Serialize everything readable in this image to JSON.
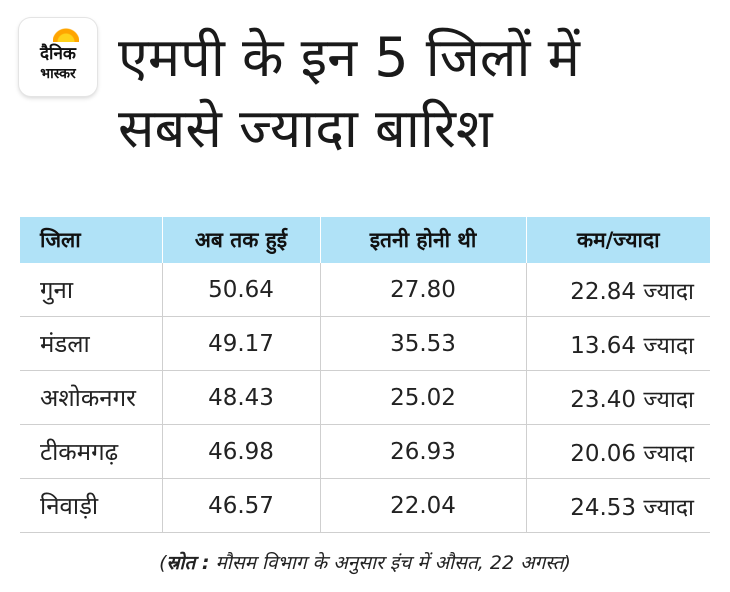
{
  "logo": {
    "line1": "दैनिक",
    "line2": "भास्कर",
    "accent_color": "#ffa500"
  },
  "title": {
    "line1": "एमपी के इन 5 जिलों में",
    "line2": "सबसे ज्यादा बारिश"
  },
  "table": {
    "header_bg": "#b0e2f7",
    "headers": [
      "जिला",
      "अब तक हुई",
      "इतनी होनी थी",
      "कम/ज्यादा"
    ],
    "rows": [
      {
        "district": "गुना",
        "received": "50.64",
        "expected": "27.80",
        "difference": "22.84 ज्यादा"
      },
      {
        "district": "मंडला",
        "received": "49.17",
        "expected": "35.53",
        "difference": "13.64 ज्यादा"
      },
      {
        "district": "अशोकनगर",
        "received": "48.43",
        "expected": "25.02",
        "difference": "23.40 ज्यादा"
      },
      {
        "district": "टीकमगढ़",
        "received": "46.98",
        "expected": "26.93",
        "difference": "20.06 ज्यादा"
      },
      {
        "district": "निवाड़ी",
        "received": "46.57",
        "expected": "22.04",
        "difference": "24.53 ज्यादा"
      }
    ]
  },
  "source": {
    "label": "स्रोत :",
    "text": "मौसम विभाग के अनुसार इंच में औसत, 22 अगस्त"
  }
}
